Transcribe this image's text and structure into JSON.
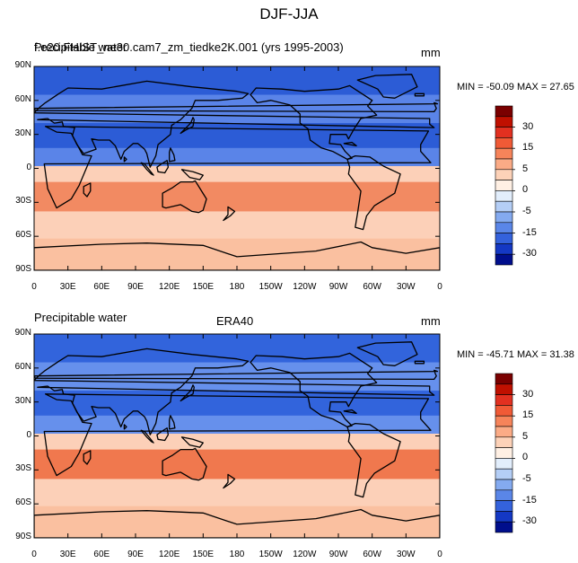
{
  "title": "DJF-JJA",
  "panels": [
    {
      "left_label": "Precipitable water",
      "left_label_overlap": "f.e20.FHIST_ne30.cam7_zm_tiedke2K.001 (yrs 1995-2003)",
      "center_label": "",
      "right_label": "mm",
      "stats": "MIN = -50.09 MAX =  27.65",
      "cols": [
        "#2c5cd6",
        "#5a84e8",
        "#2c5cd6",
        "#5a84e8",
        "#fcd0b8",
        "#f28a62",
        "#fcd0b8",
        "#fac0a0"
      ]
    },
    {
      "left_label": "Precipitable water",
      "left_label_overlap": "",
      "center_label": "ERA40",
      "right_label": "mm",
      "stats": "MIN = -45.71 MAX =  31.38",
      "cols": [
        "#3264dc",
        "#6690ec",
        "#3264dc",
        "#6690ec",
        "#fcd0b8",
        "#f0784e",
        "#fcd0b8",
        "#fac0a0"
      ]
    }
  ],
  "lat_ticks": [
    "90N",
    "60N",
    "30N",
    "0",
    "30S",
    "60S",
    "90S"
  ],
  "lon_ticks": [
    "0",
    "30E",
    "60E",
    "90E",
    "120E",
    "150E",
    "180",
    "150W",
    "120W",
    "90W",
    "60W",
    "30W",
    "0"
  ],
  "colorbar": {
    "labels": [
      "30",
      "15",
      "5",
      "0",
      "-5",
      "-15",
      "-30"
    ],
    "colors": [
      "#7a0000",
      "#c01000",
      "#e23020",
      "#f05a36",
      "#f6845a",
      "#fbab86",
      "#fdd2b8",
      "#fff0e4",
      "#e2eefc",
      "#b4cef6",
      "#84aaf0",
      "#5a86e8",
      "#3462dc",
      "#1438c4",
      "#000e8c"
    ]
  }
}
